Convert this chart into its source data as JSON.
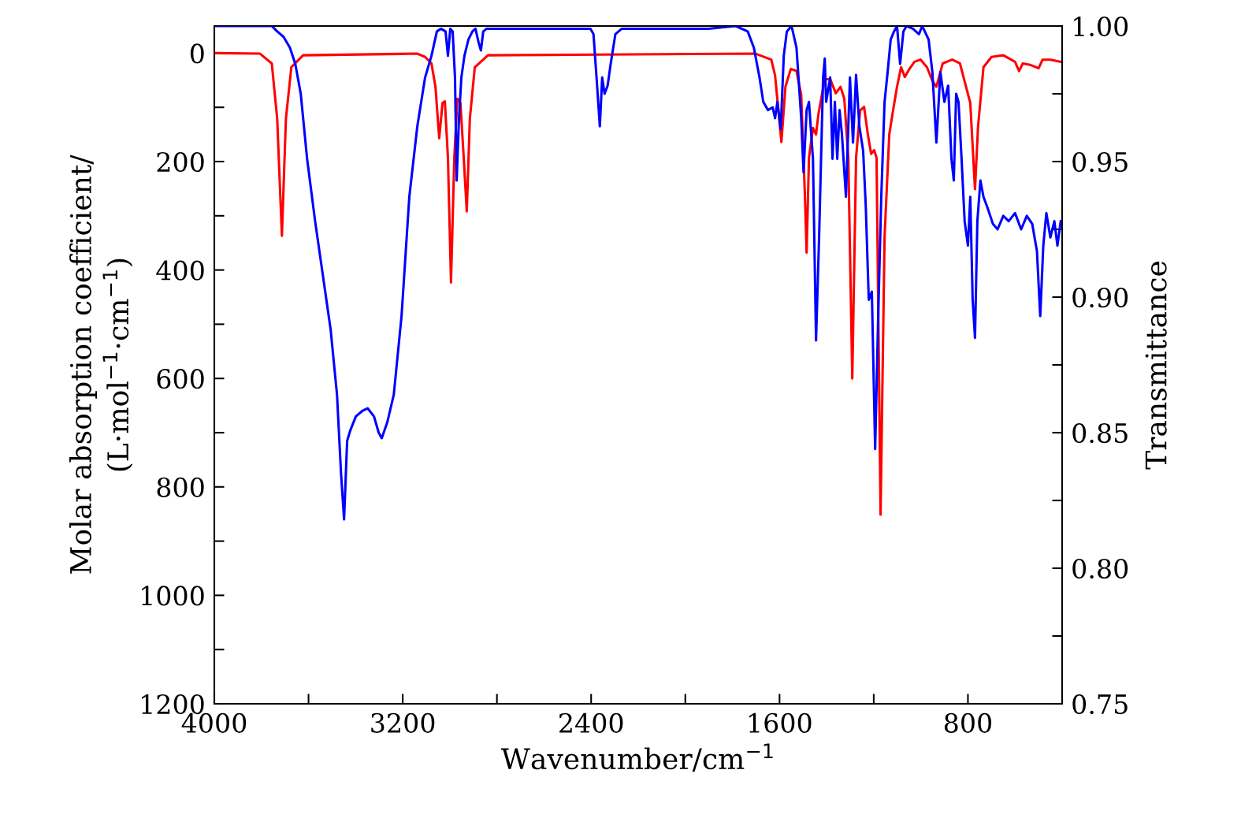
{
  "chart_data": {
    "type": "line",
    "xlabel": "Wavenumber/cm$^{−1}$",
    "ylabel": "Molar absorption coefficient/\n(L·mol$^{−1}$·cm$^{−1}$)",
    "y2label": "Transmittance",
    "xlim": [
      4000,
      400
    ],
    "xticks": [
      4000,
      {
        "value": 3600,
        "label": null
      },
      3200,
      {
        "value": 2800,
        "label": null
      },
      2400,
      {
        "value": 2000,
        "label": null
      },
      1600,
      {
        "value": 1200,
        "label": null
      },
      800,
      {
        "value": 400,
        "label": null
      }
    ],
    "ylim": [
      1200,
      -50
    ],
    "yticks": [
      0,
      {
        "value": 100,
        "label": null
      },
      200,
      {
        "value": 300,
        "label": null
      },
      400,
      {
        "value": 500,
        "label": null
      },
      600,
      {
        "value": 700,
        "label": null
      },
      800,
      {
        "value": 900,
        "label": null
      },
      1000,
      {
        "value": 1100,
        "label": null
      },
      1200
    ],
    "y2lim": [
      0.75,
      1.0
    ],
    "y2ticks": [
      {
        "value": 0.75,
        "label": "0.75"
      },
      {
        "value": 0.775,
        "label": null
      },
      {
        "value": 0.8,
        "label": "0.80"
      },
      {
        "value": 0.825,
        "label": null
      },
      {
        "value": 0.85,
        "label": "0.85"
      },
      {
        "value": 0.875,
        "label": null
      },
      {
        "value": 0.9,
        "label": "0.90"
      },
      {
        "value": 0.925,
        "label": null
      },
      {
        "value": 0.95,
        "label": "0.95"
      },
      {
        "value": 0.975,
        "label": null
      },
      {
        "value": 1.0,
        "label": "1.00"
      }
    ],
    "grid": false,
    "legend": false,
    "marker": "none",
    "line_style": "solid",
    "series": [
      {
        "color": "#ff0000",
        "axis": "y",
        "x": [
          4000,
          3806,
          3756,
          3733,
          3713,
          3696,
          3673,
          3623,
          3138,
          3105,
          3078,
          3061,
          3045,
          3031,
          3021,
          3008,
          2995,
          2981,
          2968,
          2955,
          2941,
          2928,
          2915,
          2894,
          2838,
          1702,
          1635,
          1619,
          1592,
          1575,
          1552,
          1528,
          1508,
          1492,
          1485,
          1475,
          1458,
          1445,
          1435,
          1408,
          1385,
          1361,
          1341,
          1325,
          1308,
          1291,
          1275,
          1258,
          1241,
          1225,
          1211,
          1198,
          1188,
          1171,
          1154,
          1134,
          1118,
          1101,
          1084,
          1068,
          1051,
          1027,
          1001,
          974,
          951,
          934,
          907,
          867,
          834,
          790,
          770,
          757,
          734,
          700,
          650,
          600,
          583,
          567,
          533,
          500,
          483,
          450,
          406
        ],
        "values": [
          0,
          1,
          19,
          121,
          337,
          121,
          26,
          4,
          1,
          7,
          19,
          62,
          157,
          92,
          89,
          193,
          423,
          193,
          84,
          92,
          193,
          292,
          121,
          26,
          4,
          1,
          12,
          41,
          164,
          62,
          29,
          33,
          77,
          266,
          368,
          193,
          138,
          150,
          113,
          48,
          48,
          74,
          62,
          84,
          193,
          600,
          193,
          106,
          99,
          150,
          186,
          179,
          193,
          851,
          339,
          150,
          106,
          62,
          26,
          44,
          31,
          16,
          12,
          26,
          51,
          62,
          19,
          12,
          19,
          92,
          251,
          135,
          26,
          7,
          4,
          16,
          33,
          19,
          22,
          28,
          12,
          12,
          16
        ]
      },
      {
        "color": "#0000ff",
        "axis": "y2",
        "x": [
          4000,
          3756,
          3733,
          3706,
          3679,
          3656,
          3633,
          3606,
          3572,
          3539,
          3506,
          3479,
          3462,
          3449,
          3436,
          3422,
          3399,
          3372,
          3349,
          3322,
          3302,
          3289,
          3265,
          3238,
          3205,
          3172,
          3138,
          3105,
          3078,
          3055,
          3038,
          3018,
          3008,
          2998,
          2988,
          2978,
          2971,
          2961,
          2951,
          2938,
          2921,
          2904,
          2891,
          2878,
          2868,
          2858,
          2844,
          2570,
          2403,
          2390,
          2377,
          2363,
          2353,
          2343,
          2330,
          2317,
          2297,
          2270,
          1902,
          1786,
          1735,
          1709,
          1685,
          1669,
          1649,
          1629,
          1619,
          1609,
          1595,
          1582,
          1569,
          1549,
          1528,
          1508,
          1498,
          1485,
          1475,
          1458,
          1445,
          1432,
          1415,
          1408,
          1402,
          1385,
          1375,
          1365,
          1355,
          1345,
          1335,
          1318,
          1301,
          1288,
          1275,
          1261,
          1245,
          1234,
          1221,
          1208,
          1194,
          1181,
          1168,
          1154,
          1141,
          1128,
          1114,
          1101,
          1088,
          1074,
          1061,
          1034,
          1008,
          994,
          967,
          951,
          934,
          917,
          900,
          884,
          870,
          860,
          850,
          840,
          827,
          814,
          800,
          790,
          780,
          770,
          760,
          747,
          734,
          717,
          694,
          674,
          650,
          627,
          600,
          574,
          550,
          527,
          507,
          493,
          480,
          467,
          450,
          433,
          420,
          406
        ],
        "values": [
          1.0,
          1.0,
          0.998,
          0.996,
          0.992,
          0.986,
          0.975,
          0.951,
          0.928,
          0.908,
          0.888,
          0.864,
          0.835,
          0.818,
          0.847,
          0.851,
          0.856,
          0.858,
          0.859,
          0.856,
          0.85,
          0.848,
          0.854,
          0.864,
          0.893,
          0.937,
          0.963,
          0.981,
          0.989,
          0.998,
          0.999,
          0.998,
          0.989,
          0.999,
          0.998,
          0.981,
          0.943,
          0.966,
          0.981,
          0.989,
          0.995,
          0.998,
          0.999,
          0.994,
          0.991,
          0.998,
          0.999,
          0.999,
          0.999,
          0.997,
          0.981,
          0.963,
          0.981,
          0.975,
          0.978,
          0.986,
          0.997,
          0.999,
          0.999,
          1.0,
          0.998,
          0.992,
          0.981,
          0.972,
          0.969,
          0.97,
          0.966,
          0.972,
          0.962,
          0.989,
          0.998,
          1.0,
          0.992,
          0.966,
          0.946,
          0.969,
          0.972,
          0.951,
          0.884,
          0.922,
          0.981,
          0.988,
          0.972,
          0.981,
          0.951,
          0.972,
          0.951,
          0.969,
          0.96,
          0.937,
          0.981,
          0.957,
          0.982,
          0.963,
          0.954,
          0.934,
          0.899,
          0.902,
          0.844,
          0.893,
          0.937,
          0.972,
          0.983,
          0.995,
          0.998,
          1.0,
          0.986,
          0.998,
          1.0,
          0.999,
          0.997,
          1.0,
          0.995,
          0.983,
          0.957,
          0.983,
          0.972,
          0.978,
          0.951,
          0.943,
          0.975,
          0.972,
          0.951,
          0.928,
          0.919,
          0.937,
          0.899,
          0.885,
          0.928,
          0.943,
          0.937,
          0.933,
          0.927,
          0.925,
          0.93,
          0.928,
          0.931,
          0.925,
          0.93,
          0.927,
          0.917,
          0.893,
          0.919,
          0.931,
          0.922,
          0.928,
          0.919,
          0.928
        ]
      }
    ]
  }
}
